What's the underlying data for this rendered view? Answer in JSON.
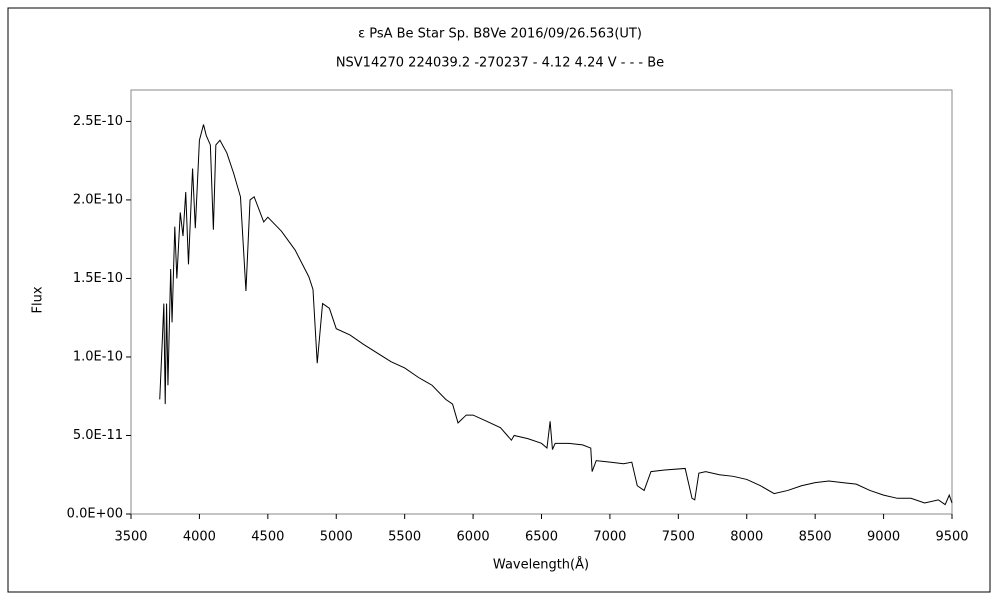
{
  "chart_data": {
    "type": "line",
    "title": "ε PsA   Be Star   Sp. B8Ve   2016/09/26.563(UT)",
    "subtitle": "NSV14270 224039.2 -270237 - 4.12 4.24 V - - - Be",
    "x_label": "Wavelength(Å)",
    "y_label": "Flux",
    "xlim": [
      3500,
      9500
    ],
    "xticks": [
      3500,
      4000,
      4500,
      5000,
      5500,
      6000,
      6500,
      7000,
      7500,
      8000,
      8500,
      9000,
      9500
    ],
    "ylim": [
      0,
      2.7e-10
    ],
    "yticks": [
      {
        "value": 0,
        "label": "0.0E+00"
      },
      {
        "value": 5e-11,
        "label": "5.0E-11"
      },
      {
        "value": 1e-10,
        "label": "1.0E-10"
      },
      {
        "value": 1.5e-10,
        "label": "1.5E-10"
      },
      {
        "value": 2e-10,
        "label": "2.0E-10"
      },
      {
        "value": 2.5e-10,
        "label": "2.5E-10"
      }
    ],
    "x": [
      3710,
      3730,
      3740,
      3750,
      3760,
      3770,
      3790,
      3800,
      3820,
      3835,
      3860,
      3880,
      3900,
      3920,
      3950,
      3970,
      4000,
      4030,
      4050,
      4080,
      4102,
      4120,
      4150,
      4200,
      4250,
      4300,
      4340,
      4370,
      4400,
      4470,
      4500,
      4600,
      4700,
      4800,
      4830,
      4861,
      4900,
      4950,
      5000,
      5100,
      5200,
      5400,
      5500,
      5600,
      5700,
      5800,
      5850,
      5890,
      5950,
      6000,
      6100,
      6200,
      6280,
      6300,
      6400,
      6500,
      6540,
      6563,
      6580,
      6600,
      6700,
      6800,
      6860,
      6870,
      6900,
      7000,
      7100,
      7160,
      7200,
      7250,
      7300,
      7400,
      7550,
      7600,
      7620,
      7650,
      7700,
      7800,
      7900,
      8000,
      8100,
      8200,
      8300,
      8400,
      8500,
      8600,
      8700,
      8800,
      8900,
      9000,
      9100,
      9200,
      9300,
      9400,
      9450,
      9480,
      9500
    ],
    "series": [
      {
        "color": "#000000",
        "values": [
          7.3e-11,
          1.13e-10,
          1.34e-10,
          7e-11,
          1.34e-10,
          8.2e-11,
          1.56e-10,
          1.22e-10,
          1.83e-10,
          1.5e-10,
          1.92e-10,
          1.77e-10,
          2.05e-10,
          1.59e-10,
          2.2e-10,
          1.82e-10,
          2.38e-10,
          2.48e-10,
          2.41e-10,
          2.35e-10,
          1.81e-10,
          2.35e-10,
          2.38e-10,
          2.3e-10,
          2.17e-10,
          2.02e-10,
          1.42e-10,
          2e-10,
          2.02e-10,
          1.86e-10,
          1.89e-10,
          1.8e-10,
          1.68e-10,
          1.51e-10,
          1.43e-10,
          9.6e-11,
          1.34e-10,
          1.31e-10,
          1.18e-10,
          1.14e-10,
          1.08e-10,
          9.7e-11,
          9.3e-11,
          8.7e-11,
          8.2e-11,
          7.3e-11,
          7e-11,
          5.8e-11,
          6.3e-11,
          6.3e-11,
          5.9e-11,
          5.5e-11,
          4.7e-11,
          5e-11,
          4.8e-11,
          4.5e-11,
          4.2e-11,
          5.9e-11,
          4.1e-11,
          4.5e-11,
          4.5e-11,
          4.4e-11,
          4.2e-11,
          2.7e-11,
          3.4e-11,
          3.3e-11,
          3.2e-11,
          3.3e-11,
          1.8e-11,
          1.5e-11,
          2.7e-11,
          2.8e-11,
          2.9e-11,
          1e-11,
          9e-12,
          2.6e-11,
          2.7e-11,
          2.5e-11,
          2.4e-11,
          2.2e-11,
          1.8e-11,
          1.3e-11,
          1.5e-11,
          1.8e-11,
          2e-11,
          2.1e-11,
          2e-11,
          1.9e-11,
          1.5e-11,
          1.2e-11,
          1e-11,
          1e-11,
          7e-12,
          9e-12,
          6e-12,
          1.2e-11,
          7e-12
        ]
      }
    ]
  }
}
